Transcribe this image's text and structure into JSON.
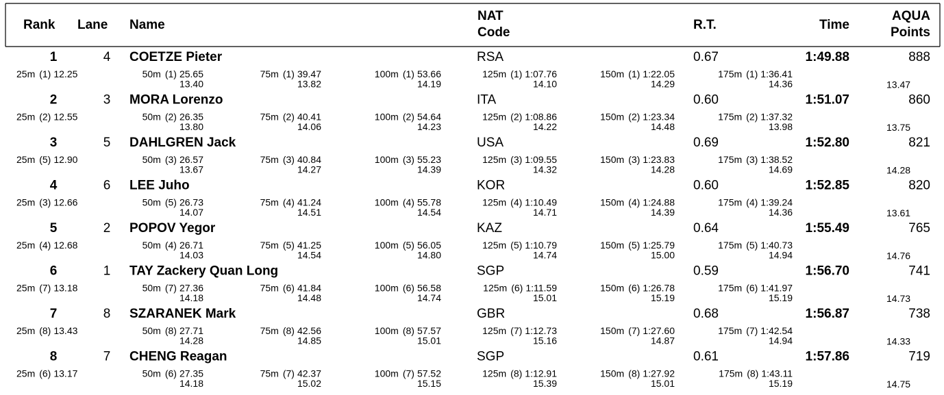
{
  "header": {
    "rank": "Rank",
    "lane": "Lane",
    "name": "Name",
    "nat": [
      "NAT",
      "Code"
    ],
    "rt": "R.T.",
    "time": "Time",
    "points": [
      "AQUA",
      "Points"
    ]
  },
  "athletes": [
    {
      "rank": 1,
      "lane": 4,
      "name": "COETZE Pieter",
      "nat": "RSA",
      "rt": "0.67",
      "time": "1:49.88",
      "points": 888,
      "splits": [
        [
          "25m",
          "(1)",
          "12.25"
        ],
        [
          "50m",
          "(1)",
          "25.65",
          "13.40"
        ],
        [
          "75m",
          "(1)",
          "39.47",
          "13.82"
        ],
        [
          "100m",
          "(1)",
          "53.66",
          "14.19"
        ],
        [
          "125m",
          "(1)",
          "1:07.76",
          "14.10"
        ],
        [
          "150m",
          "(1)",
          "1:22.05",
          "14.29"
        ],
        [
          "175m",
          "(1)",
          "1:36.41",
          "14.36"
        ]
      ],
      "last": "13.47"
    },
    {
      "rank": 2,
      "lane": 3,
      "name": "MORA Lorenzo",
      "nat": "ITA",
      "rt": "0.60",
      "time": "1:51.07",
      "points": 860,
      "splits": [
        [
          "25m",
          "(2)",
          "12.55"
        ],
        [
          "50m",
          "(2)",
          "26.35",
          "13.80"
        ],
        [
          "75m",
          "(2)",
          "40.41",
          "14.06"
        ],
        [
          "100m",
          "(2)",
          "54.64",
          "14.23"
        ],
        [
          "125m",
          "(2)",
          "1:08.86",
          "14.22"
        ],
        [
          "150m",
          "(2)",
          "1:23.34",
          "14.48"
        ],
        [
          "175m",
          "(2)",
          "1:37.32",
          "13.98"
        ]
      ],
      "last": "13.75"
    },
    {
      "rank": 3,
      "lane": 5,
      "name": "DAHLGREN Jack",
      "nat": "USA",
      "rt": "0.69",
      "time": "1:52.80",
      "points": 821,
      "splits": [
        [
          "25m",
          "(5)",
          "12.90"
        ],
        [
          "50m",
          "(3)",
          "26.57",
          "13.67"
        ],
        [
          "75m",
          "(3)",
          "40.84",
          "14.27"
        ],
        [
          "100m",
          "(3)",
          "55.23",
          "14.39"
        ],
        [
          "125m",
          "(3)",
          "1:09.55",
          "14.32"
        ],
        [
          "150m",
          "(3)",
          "1:23.83",
          "14.28"
        ],
        [
          "175m",
          "(3)",
          "1:38.52",
          "14.69"
        ]
      ],
      "last": "14.28"
    },
    {
      "rank": 4,
      "lane": 6,
      "name": "LEE Juho",
      "nat": "KOR",
      "rt": "0.60",
      "time": "1:52.85",
      "points": 820,
      "splits": [
        [
          "25m",
          "(3)",
          "12.66"
        ],
        [
          "50m",
          "(5)",
          "26.73",
          "14.07"
        ],
        [
          "75m",
          "(4)",
          "41.24",
          "14.51"
        ],
        [
          "100m",
          "(4)",
          "55.78",
          "14.54"
        ],
        [
          "125m",
          "(4)",
          "1:10.49",
          "14.71"
        ],
        [
          "150m",
          "(4)",
          "1:24.88",
          "14.39"
        ],
        [
          "175m",
          "(4)",
          "1:39.24",
          "14.36"
        ]
      ],
      "last": "13.61"
    },
    {
      "rank": 5,
      "lane": 2,
      "name": "POPOV Yegor",
      "nat": "KAZ",
      "rt": "0.64",
      "time": "1:55.49",
      "points": 765,
      "splits": [
        [
          "25m",
          "(4)",
          "12.68"
        ],
        [
          "50m",
          "(4)",
          "26.71",
          "14.03"
        ],
        [
          "75m",
          "(5)",
          "41.25",
          "14.54"
        ],
        [
          "100m",
          "(5)",
          "56.05",
          "14.80"
        ],
        [
          "125m",
          "(5)",
          "1:10.79",
          "14.74"
        ],
        [
          "150m",
          "(5)",
          "1:25.79",
          "15.00"
        ],
        [
          "175m",
          "(5)",
          "1:40.73",
          "14.94"
        ]
      ],
      "last": "14.76"
    },
    {
      "rank": 6,
      "lane": 1,
      "name": "TAY Zackery Quan Long",
      "nat": "SGP",
      "rt": "0.59",
      "time": "1:56.70",
      "points": 741,
      "splits": [
        [
          "25m",
          "(7)",
          "13.18"
        ],
        [
          "50m",
          "(7)",
          "27.36",
          "14.18"
        ],
        [
          "75m",
          "(6)",
          "41.84",
          "14.48"
        ],
        [
          "100m",
          "(6)",
          "56.58",
          "14.74"
        ],
        [
          "125m",
          "(6)",
          "1:11.59",
          "15.01"
        ],
        [
          "150m",
          "(6)",
          "1:26.78",
          "15.19"
        ],
        [
          "175m",
          "(6)",
          "1:41.97",
          "15.19"
        ]
      ],
      "last": "14.73"
    },
    {
      "rank": 7,
      "lane": 8,
      "name": "SZARANEK Mark",
      "nat": "GBR",
      "rt": "0.68",
      "time": "1:56.87",
      "points": 738,
      "splits": [
        [
          "25m",
          "(8)",
          "13.43"
        ],
        [
          "50m",
          "(8)",
          "27.71",
          "14.28"
        ],
        [
          "75m",
          "(8)",
          "42.56",
          "14.85"
        ],
        [
          "100m",
          "(8)",
          "57.57",
          "15.01"
        ],
        [
          "125m",
          "(7)",
          "1:12.73",
          "15.16"
        ],
        [
          "150m",
          "(7)",
          "1:27.60",
          "14.87"
        ],
        [
          "175m",
          "(7)",
          "1:42.54",
          "14.94"
        ]
      ],
      "last": "14.33"
    },
    {
      "rank": 8,
      "lane": 7,
      "name": "CHENG Reagan",
      "nat": "SGP",
      "rt": "0.61",
      "time": "1:57.86",
      "points": 719,
      "splits": [
        [
          "25m",
          "(6)",
          "13.17"
        ],
        [
          "50m",
          "(6)",
          "27.35",
          "14.18"
        ],
        [
          "75m",
          "(7)",
          "42.37",
          "15.02"
        ],
        [
          "100m",
          "(7)",
          "57.52",
          "15.15"
        ],
        [
          "125m",
          "(8)",
          "1:12.91",
          "15.39"
        ],
        [
          "150m",
          "(8)",
          "1:27.92",
          "15.01"
        ],
        [
          "175m",
          "(8)",
          "1:43.11",
          "15.19"
        ]
      ],
      "last": "14.75"
    }
  ]
}
